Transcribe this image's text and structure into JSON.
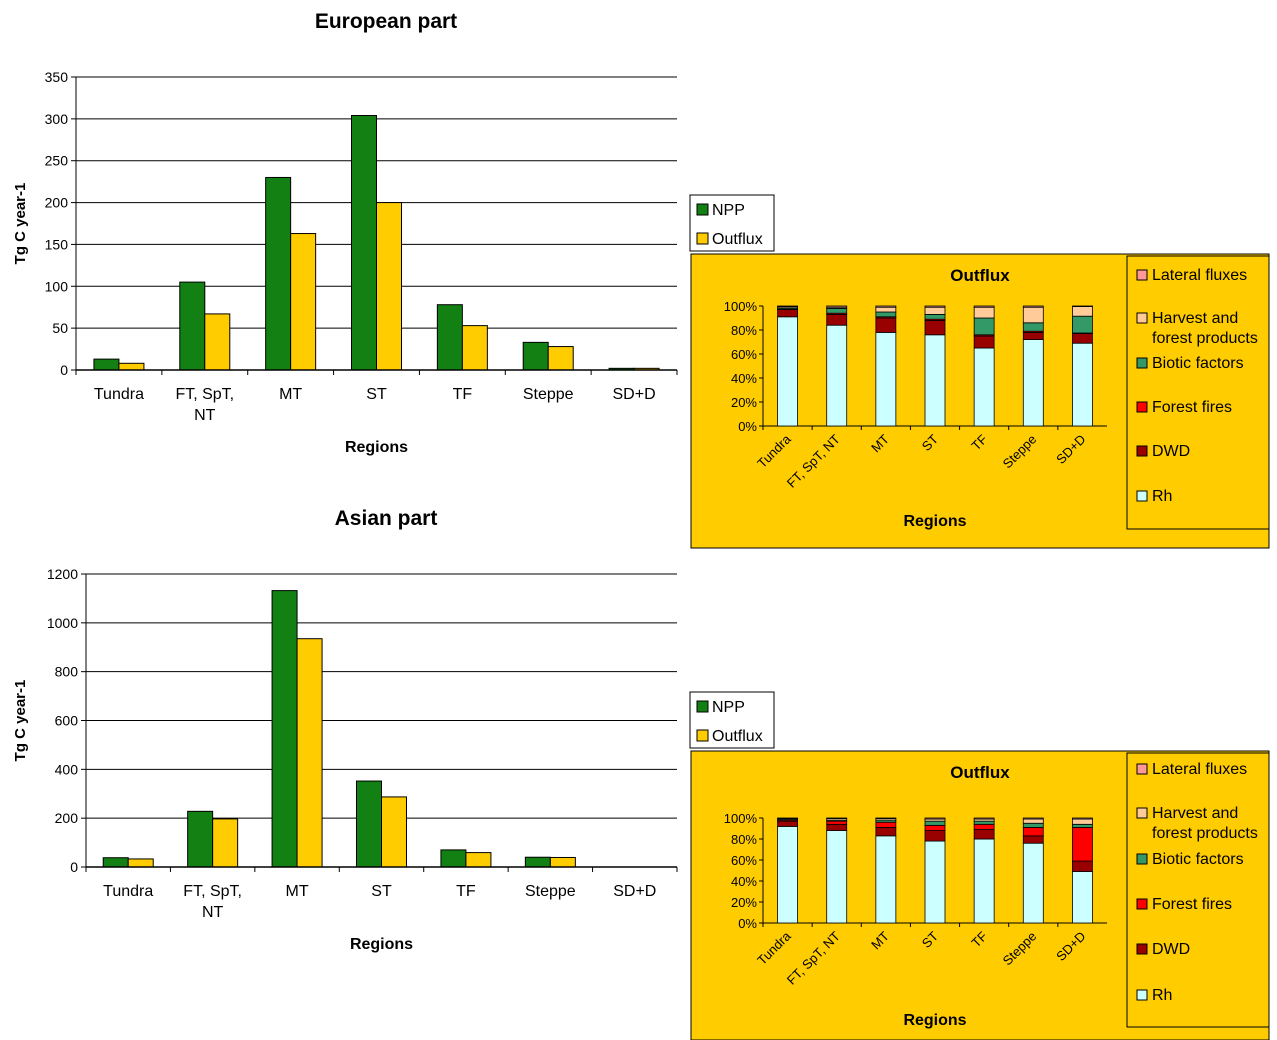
{
  "colors": {
    "npp": "#138013",
    "outflux": "#ffcc00",
    "panel": "#ffcc00",
    "rh": "#ccffff",
    "dwd": "#990000",
    "forest_fires": "#ff0000",
    "biotic": "#339966",
    "harvest": "#ffcc99",
    "lateral": "#ff9999"
  },
  "chart_data": [
    {
      "type": "bar",
      "title": "European part",
      "xlabel": "Regions",
      "ylabel": "Tg C year-1",
      "ylim": [
        0,
        350
      ],
      "yticks": [
        "0",
        "50",
        "100",
        "150",
        "200",
        "250",
        "300",
        "350"
      ],
      "categories": [
        "Tundra",
        "FT, SpT,\nNT",
        "MT",
        "ST",
        "TF",
        "Steppe",
        "SD+D"
      ],
      "series": [
        {
          "name": "NPP",
          "values": [
            13,
            105,
            230,
            304,
            78,
            33,
            2
          ]
        },
        {
          "name": "Outflux",
          "values": [
            8,
            67,
            163,
            200,
            53,
            28,
            2
          ]
        }
      ],
      "legend": "right",
      "grid": true
    },
    {
      "type": "bar",
      "stacked": "percent",
      "title": "Outflux",
      "xlabel": "Regions",
      "ylim": [
        0,
        100
      ],
      "yticks": [
        "0%",
        "20%",
        "40%",
        "60%",
        "80%",
        "100%"
      ],
      "categories": [
        "Tundra",
        "FT, SpT, NT",
        "MT",
        "ST",
        "TF",
        "Steppe",
        "SD+D"
      ],
      "series": [
        {
          "name": "Rh",
          "values": [
            91,
            84,
            78,
            76,
            65,
            72,
            69
          ]
        },
        {
          "name": "DWD",
          "values": [
            6,
            9,
            12,
            12,
            10,
            6,
            8
          ]
        },
        {
          "name": "Forest fires",
          "values": [
            0.5,
            1,
            1,
            1,
            1,
            1,
            0.5
          ]
        },
        {
          "name": "Biotic factors",
          "values": [
            1,
            4,
            4,
            4,
            14,
            7,
            14
          ]
        },
        {
          "name": "Harvest and forest products",
          "values": [
            1,
            1,
            4,
            6,
            9,
            13,
            8
          ]
        },
        {
          "name": "Lateral fluxes",
          "values": [
            0.5,
            1,
            1,
            1,
            1,
            1,
            0.5
          ]
        }
      ],
      "legend": "right"
    },
    {
      "type": "bar",
      "title": "Asian part",
      "xlabel": "Regions",
      "ylabel": "Tg C year-1",
      "ylim": [
        0,
        1200
      ],
      "yticks": [
        "0",
        "200",
        "400",
        "600",
        "800",
        "1000",
        "1200"
      ],
      "categories": [
        "Tundra",
        "FT, SpT,\nNT",
        "MT",
        "ST",
        "TF",
        "Steppe",
        "SD+D"
      ],
      "series": [
        {
          "name": "NPP",
          "values": [
            38,
            228,
            1132,
            352,
            70,
            40,
            0
          ]
        },
        {
          "name": "Outflux",
          "values": [
            33,
            197,
            935,
            287,
            59,
            39,
            0
          ]
        }
      ],
      "legend": "right",
      "grid": true
    },
    {
      "type": "bar",
      "stacked": "percent",
      "title": "Outflux",
      "xlabel": "Regions",
      "ylim": [
        0,
        100
      ],
      "yticks": [
        "0%",
        "20%",
        "40%",
        "60%",
        "80%",
        "100%"
      ],
      "categories": [
        "Tundra",
        "FT, SpT, NT",
        "MT",
        "ST",
        "TF",
        "Steppe",
        "SD+D"
      ],
      "series": [
        {
          "name": "Rh",
          "values": [
            92,
            88,
            83,
            78,
            80,
            76,
            49
          ]
        },
        {
          "name": "DWD",
          "values": [
            5,
            6,
            8,
            10,
            9,
            7,
            10
          ]
        },
        {
          "name": "Forest fires",
          "values": [
            1,
            3,
            5,
            5,
            5,
            8,
            32
          ]
        },
        {
          "name": "Biotic factors",
          "values": [
            1,
            1,
            2,
            4,
            3,
            4,
            3
          ]
        },
        {
          "name": "Harvest and forest products",
          "values": [
            0.5,
            1.5,
            1.5,
            2,
            2,
            4,
            5
          ]
        },
        {
          "name": "Lateral fluxes",
          "values": [
            0.5,
            0.5,
            0.5,
            1,
            1,
            1,
            1
          ]
        }
      ],
      "legend": "right"
    }
  ]
}
